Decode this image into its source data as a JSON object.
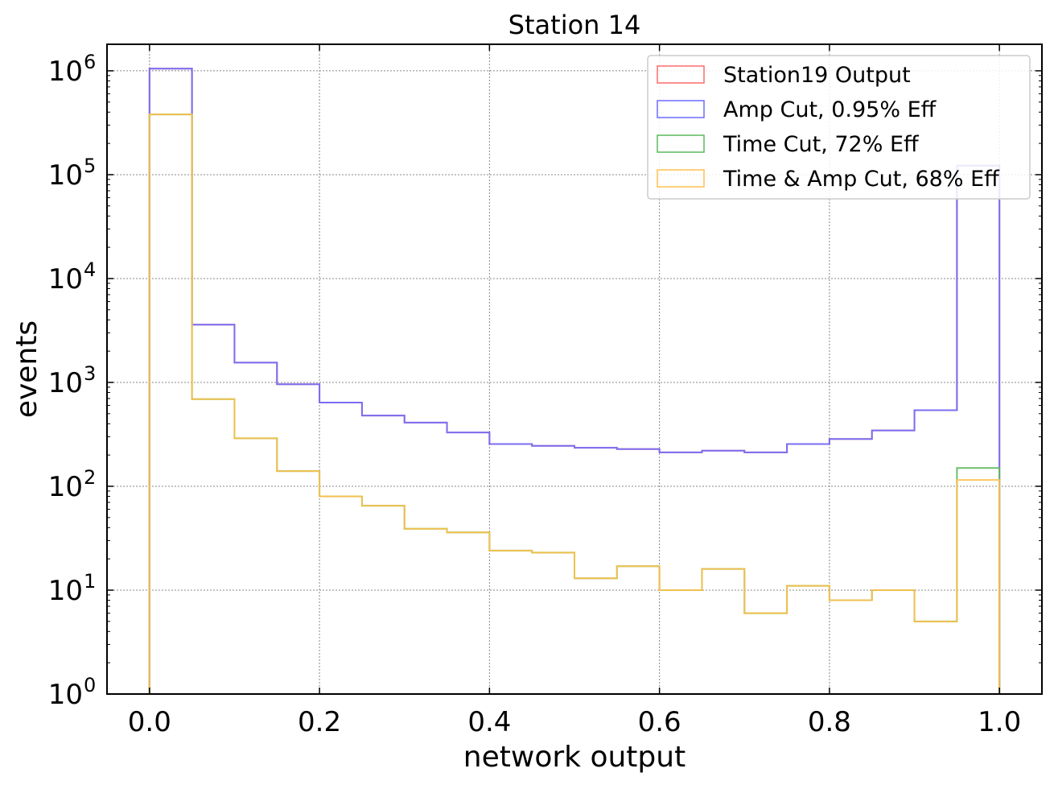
{
  "chart_data": {
    "type": "histogram",
    "title": "Station 14",
    "xlabel": "network output",
    "ylabel": "events",
    "yscale": "log",
    "xlim": [
      -0.05,
      1.05
    ],
    "ylim": [
      1,
      1800000
    ],
    "x_ticks": [
      "0.0",
      "0.2",
      "0.4",
      "0.6",
      "0.8",
      "1.0"
    ],
    "x_tick_values": [
      0.0,
      0.2,
      0.4,
      0.6,
      0.8,
      1.0
    ],
    "y_ticks": [
      {
        "base": "10",
        "exp": "0",
        "value": 1
      },
      {
        "base": "10",
        "exp": "1",
        "value": 10
      },
      {
        "base": "10",
        "exp": "2",
        "value": 100
      },
      {
        "base": "10",
        "exp": "3",
        "value": 1000
      },
      {
        "base": "10",
        "exp": "4",
        "value": 10000
      },
      {
        "base": "10",
        "exp": "5",
        "value": 100000
      },
      {
        "base": "10",
        "exp": "6",
        "value": 1000000
      }
    ],
    "grid": true,
    "legend_position": "top-right",
    "bin_edges": [
      0.0,
      0.05,
      0.1,
      0.15,
      0.2,
      0.25,
      0.3,
      0.35,
      0.4,
      0.45,
      0.5,
      0.55,
      0.6,
      0.65,
      0.7,
      0.75,
      0.8,
      0.85,
      0.9,
      0.95,
      1.0
    ],
    "series": [
      {
        "name": "Station19 Output",
        "color": "#ff6b6b",
        "values": [
          1050000,
          3600,
          1550,
          960,
          640,
          480,
          410,
          330,
          255,
          245,
          235,
          228,
          212,
          220,
          212,
          255,
          285,
          345,
          540,
          122000
        ]
      },
      {
        "name": "Amp Cut, 0.95% Eff",
        "color": "#6b6bff",
        "values": [
          1050000,
          3600,
          1550,
          960,
          640,
          480,
          410,
          330,
          255,
          245,
          235,
          228,
          212,
          220,
          212,
          255,
          285,
          345,
          540,
          122000
        ]
      },
      {
        "name": "Time Cut, 72% Eff",
        "color": "#5cb85c",
        "values": [
          380000,
          690,
          290,
          140,
          80,
          65,
          39,
          36,
          24,
          23,
          13,
          17,
          10,
          16,
          6,
          11,
          8,
          10,
          5,
          150
        ]
      },
      {
        "name": "Time & Amp Cut, 68% Eff",
        "color": "#ffc04d",
        "values": [
          380000,
          690,
          290,
          140,
          80,
          65,
          39,
          36,
          24,
          23,
          13,
          17,
          10,
          16,
          6,
          11,
          8,
          10,
          5,
          115
        ]
      }
    ]
  }
}
